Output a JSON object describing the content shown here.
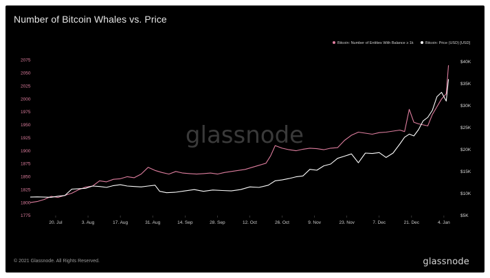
{
  "title": "Number of Bitcoin Whales vs. Price",
  "footer": "© 2021 Glassnode. All Rights Reserved.",
  "brand": "glassnode",
  "watermark": "glassnode",
  "colors": {
    "whales": "#e07fa0",
    "price": "#ffffff",
    "background": "#000000"
  },
  "chart_data": {
    "type": "line",
    "x_tick_labels": [
      "20. Jul",
      "3. Aug",
      "17. Aug",
      "31. Aug",
      "14. Sep",
      "28. Sep",
      "12. Oct",
      "26. Oct",
      "9. Nov",
      "23. Nov",
      "7. Dec",
      "21. Dec",
      "4. Jan"
    ],
    "xlim": [
      "2020-07-09",
      "2021-01-07"
    ],
    "y_left": {
      "ticks": [
        1775,
        1800,
        1825,
        1850,
        1875,
        1900,
        1925,
        1950,
        1975,
        2000,
        2025,
        2050,
        2075
      ],
      "ylim": [
        1775,
        2085
      ]
    },
    "y_right": {
      "ticks": [
        "$5K",
        "$10K",
        "$15K",
        "$20K",
        "$25K",
        "$30K",
        "$35K",
        "$40K"
      ],
      "values": [
        5000,
        10000,
        15000,
        20000,
        25000,
        30000,
        35000,
        40000
      ],
      "ylim": [
        5000,
        41500
      ]
    },
    "legend_placement": "top-right",
    "series": [
      {
        "name": "Bitcoin: Number of Entities With Balance ≥ 1k",
        "axis": "left",
        "x": [
          "2020-07-09",
          "2020-07-12",
          "2020-07-15",
          "2020-07-18",
          "2020-07-21",
          "2020-07-24",
          "2020-07-27",
          "2020-07-30",
          "2020-08-02",
          "2020-08-05",
          "2020-08-08",
          "2020-08-11",
          "2020-08-14",
          "2020-08-17",
          "2020-08-20",
          "2020-08-23",
          "2020-08-26",
          "2020-08-29",
          "2020-09-01",
          "2020-09-04",
          "2020-09-07",
          "2020-09-10",
          "2020-09-13",
          "2020-09-16",
          "2020-09-19",
          "2020-09-22",
          "2020-09-25",
          "2020-09-28",
          "2020-10-01",
          "2020-10-04",
          "2020-10-07",
          "2020-10-10",
          "2020-10-13",
          "2020-10-16",
          "2020-10-19",
          "2020-10-21",
          "2020-10-23",
          "2020-10-26",
          "2020-10-29",
          "2020-11-01",
          "2020-11-04",
          "2020-11-07",
          "2020-11-10",
          "2020-11-13",
          "2020-11-16",
          "2020-11-19",
          "2020-11-22",
          "2020-11-25",
          "2020-11-28",
          "2020-12-01",
          "2020-12-04",
          "2020-12-07",
          "2020-12-10",
          "2020-12-13",
          "2020-12-16",
          "2020-12-18",
          "2020-12-20",
          "2020-12-22",
          "2020-12-24",
          "2020-12-26",
          "2020-12-28",
          "2020-12-30",
          "2021-01-01",
          "2021-01-03",
          "2021-01-05",
          "2021-01-06"
        ],
        "values": [
          1800,
          1802,
          1806,
          1812,
          1810,
          1814,
          1818,
          1825,
          1830,
          1832,
          1842,
          1840,
          1845,
          1846,
          1850,
          1848,
          1855,
          1868,
          1862,
          1858,
          1855,
          1860,
          1857,
          1856,
          1855,
          1856,
          1857,
          1855,
          1858,
          1860,
          1862,
          1864,
          1868,
          1872,
          1876,
          1890,
          1910,
          1905,
          1902,
          1900,
          1903,
          1905,
          1904,
          1902,
          1905,
          1906,
          1920,
          1930,
          1936,
          1934,
          1932,
          1935,
          1936,
          1938,
          1940,
          1937,
          1980,
          1955,
          1952,
          1950,
          1948,
          1970,
          1985,
          2000,
          2010,
          2065
        ]
      },
      {
        "name": "Bitcoin: Price (USD) [USD]",
        "axis": "right",
        "x": [
          "2020-07-09",
          "2020-07-12",
          "2020-07-15",
          "2020-07-18",
          "2020-07-21",
          "2020-07-24",
          "2020-07-27",
          "2020-07-30",
          "2020-08-02",
          "2020-08-05",
          "2020-08-08",
          "2020-08-11",
          "2020-08-14",
          "2020-08-17",
          "2020-08-20",
          "2020-08-23",
          "2020-08-26",
          "2020-08-29",
          "2020-09-01",
          "2020-09-03",
          "2020-09-06",
          "2020-09-10",
          "2020-09-14",
          "2020-09-18",
          "2020-09-22",
          "2020-09-26",
          "2020-09-30",
          "2020-10-04",
          "2020-10-08",
          "2020-10-12",
          "2020-10-16",
          "2020-10-20",
          "2020-10-23",
          "2020-10-26",
          "2020-10-29",
          "2020-11-01",
          "2020-11-04",
          "2020-11-07",
          "2020-11-10",
          "2020-11-13",
          "2020-11-16",
          "2020-11-19",
          "2020-11-22",
          "2020-11-25",
          "2020-11-28",
          "2020-12-01",
          "2020-12-04",
          "2020-12-07",
          "2020-12-10",
          "2020-12-13",
          "2020-12-16",
          "2020-12-18",
          "2020-12-20",
          "2020-12-22",
          "2020-12-24",
          "2020-12-26",
          "2020-12-28",
          "2020-12-30",
          "2021-01-01",
          "2021-01-03",
          "2021-01-05",
          "2021-01-06"
        ],
        "values": [
          9200,
          9250,
          9200,
          9150,
          9400,
          9550,
          11000,
          11100,
          11200,
          11700,
          11600,
          11400,
          11800,
          12000,
          11700,
          11600,
          11500,
          11700,
          11900,
          10500,
          10200,
          10300,
          10600,
          10900,
          10500,
          10800,
          10700,
          10600,
          10900,
          11500,
          11400,
          11900,
          12900,
          13100,
          13400,
          13800,
          14000,
          15500,
          15300,
          16300,
          16700,
          18000,
          18500,
          19000,
          17000,
          19200,
          19100,
          19300,
          18200,
          19200,
          21300,
          22800,
          23500,
          23100,
          24500,
          26500,
          27300,
          28900,
          32000,
          33000,
          31000,
          36000
        ]
      }
    ]
  }
}
